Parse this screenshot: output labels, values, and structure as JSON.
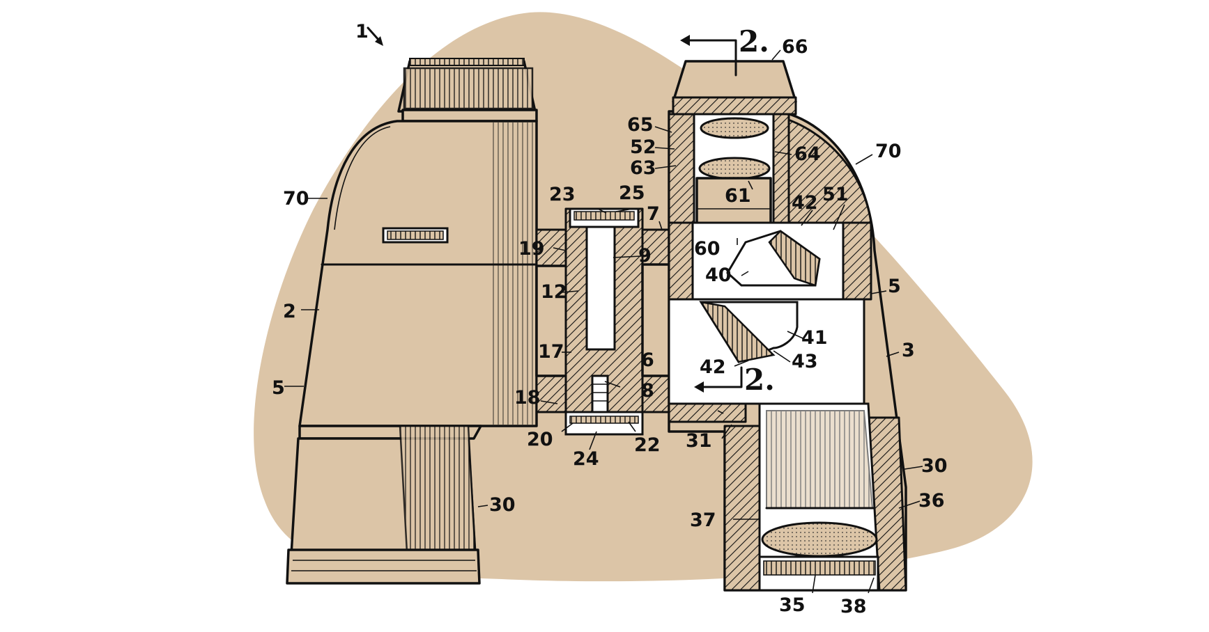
{
  "figure": {
    "colors": {
      "background": "#ffffff",
      "blob": "#dcc5a7",
      "ink": "#111111"
    },
    "section_marker": "2.",
    "figure_ref": "1",
    "labels": {
      "l66": "66",
      "l65": "65",
      "l52": "52",
      "l63": "63",
      "l64": "64",
      "l70r": "70",
      "l61": "61",
      "l42a": "42",
      "l51": "51",
      "l23": "23",
      "l25": "25",
      "l7": "7",
      "l19": "19",
      "l9": "9",
      "l60": "60",
      "l40": "40",
      "l12": "12",
      "l5r": "5",
      "l17": "17",
      "l41": "41",
      "l3": "3",
      "l42b": "42",
      "l43": "43",
      "l6": "6",
      "l18": "18",
      "l8": "8",
      "l20": "20",
      "l22": "22",
      "l24": "24",
      "l31": "31",
      "l30r": "30",
      "l36": "36",
      "l37": "37",
      "l35": "35",
      "l38": "38",
      "l70l": "70",
      "l2": "2",
      "l5l": "5",
      "l30l": "30"
    }
  }
}
